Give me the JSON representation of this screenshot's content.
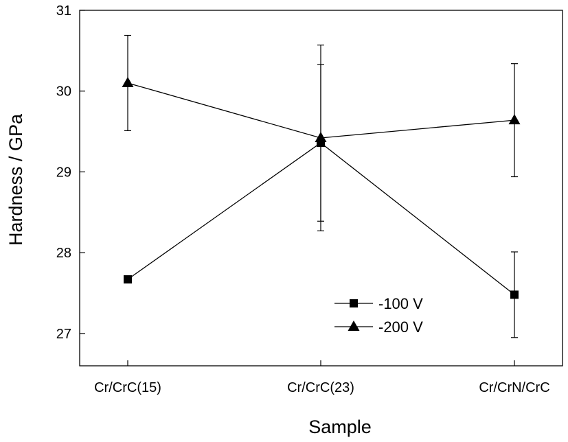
{
  "chart_data": {
    "type": "line",
    "xlabel": "Sample",
    "ylabel": "Hardness / GPa",
    "categories": [
      "Cr/CrC(15)",
      "Cr/CrC(23)",
      "Cr/CrN/CrC"
    ],
    "ylim": [
      26.6,
      31
    ],
    "yticks": [
      27,
      28,
      29,
      30,
      31
    ],
    "grid": false,
    "legend_position": "bottom-center",
    "series": [
      {
        "name": "-100 V",
        "marker": "square",
        "color": "#000000",
        "values": [
          27.67,
          29.36,
          27.48
        ],
        "error": [
          0.0,
          0.97,
          0.53
        ]
      },
      {
        "name": "-200 V",
        "marker": "triangle",
        "color": "#000000",
        "values": [
          30.1,
          29.42,
          29.64
        ],
        "error": [
          0.59,
          1.15,
          0.7
        ]
      }
    ]
  }
}
